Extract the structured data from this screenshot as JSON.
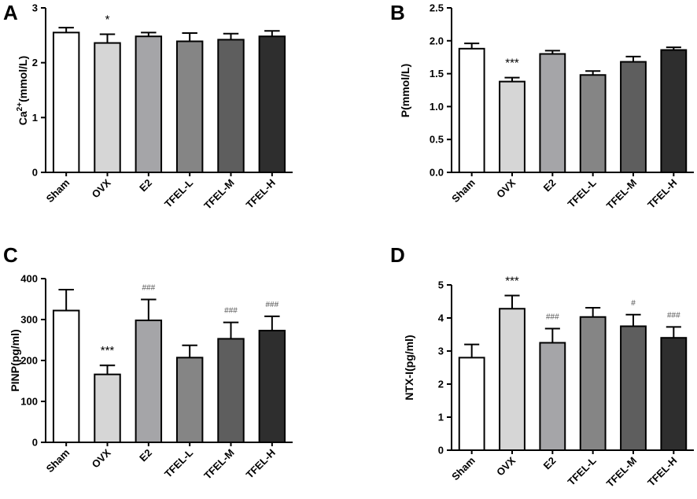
{
  "figure": {
    "categories": [
      "Sham",
      "OVX",
      "E2",
      "TFEL-L",
      "TFEL-M",
      "TFEL-H"
    ],
    "bar_colors": [
      "#ffffff",
      "#d6d6d6",
      "#a5a5a8",
      "#858585",
      "#5e5e5e",
      "#2e2e2e"
    ]
  },
  "chart_data": [
    {
      "type": "bar",
      "panel": "A",
      "ylabel_base": "Ca",
      "ylabel_sup": "2+",
      "ylabel_rest": "(mmol/L)",
      "ylim": [
        0,
        3
      ],
      "yticks": [
        "0",
        "1",
        "2",
        "3"
      ],
      "categories": [
        "Sham",
        "OVX",
        "E2",
        "TFEL-L",
        "TFEL-M",
        "TFEL-H"
      ],
      "values": [
        2.55,
        2.36,
        2.48,
        2.39,
        2.42,
        2.48
      ],
      "errors": [
        0.09,
        0.16,
        0.07,
        0.15,
        0.11,
        0.1
      ],
      "annotations": [
        "",
        "*",
        "",
        "",
        "",
        ""
      ]
    },
    {
      "type": "bar",
      "panel": "B",
      "ylabel": "P(mmol/L)",
      "ylim": [
        0,
        2.5
      ],
      "yticks": [
        "0.0",
        "0.5",
        "1.0",
        "1.5",
        "2.0",
        "2.5"
      ],
      "categories": [
        "Sham",
        "OVX",
        "E2",
        "TFEL-L",
        "TFEL-M",
        "TFEL-H"
      ],
      "values": [
        1.88,
        1.38,
        1.8,
        1.48,
        1.68,
        1.86
      ],
      "errors": [
        0.08,
        0.06,
        0.05,
        0.06,
        0.08,
        0.04
      ],
      "annotations": [
        "",
        "***",
        "",
        "",
        "",
        ""
      ]
    },
    {
      "type": "bar",
      "panel": "C",
      "ylabel": "PINP(pg/ml)",
      "ylim": [
        0,
        400
      ],
      "yticks": [
        "0",
        "100",
        "200",
        "300",
        "400"
      ],
      "categories": [
        "Sham",
        "OVX",
        "E2",
        "TFEL-L",
        "TFEL-M",
        "TFEL-H"
      ],
      "values": [
        322,
        166,
        298,
        207,
        253,
        273
      ],
      "errors": [
        51,
        22,
        51,
        30,
        40,
        35
      ],
      "annotations": [
        "",
        "***",
        "###",
        "",
        "###",
        "###"
      ]
    },
    {
      "type": "bar",
      "panel": "D",
      "ylabel": "NTX-I(pg/ml)",
      "ylim": [
        0,
        5
      ],
      "yticks": [
        "0",
        "1",
        "2",
        "3",
        "4",
        "5"
      ],
      "categories": [
        "Sham",
        "OVX",
        "E2",
        "TFEL-L",
        "TFEL-M",
        "TFEL-H"
      ],
      "values": [
        2.8,
        4.28,
        3.25,
        4.03,
        3.75,
        3.4
      ],
      "errors": [
        0.4,
        0.4,
        0.43,
        0.28,
        0.35,
        0.33
      ],
      "annotations": [
        "",
        "***",
        "###",
        "",
        "#",
        "###"
      ]
    }
  ]
}
